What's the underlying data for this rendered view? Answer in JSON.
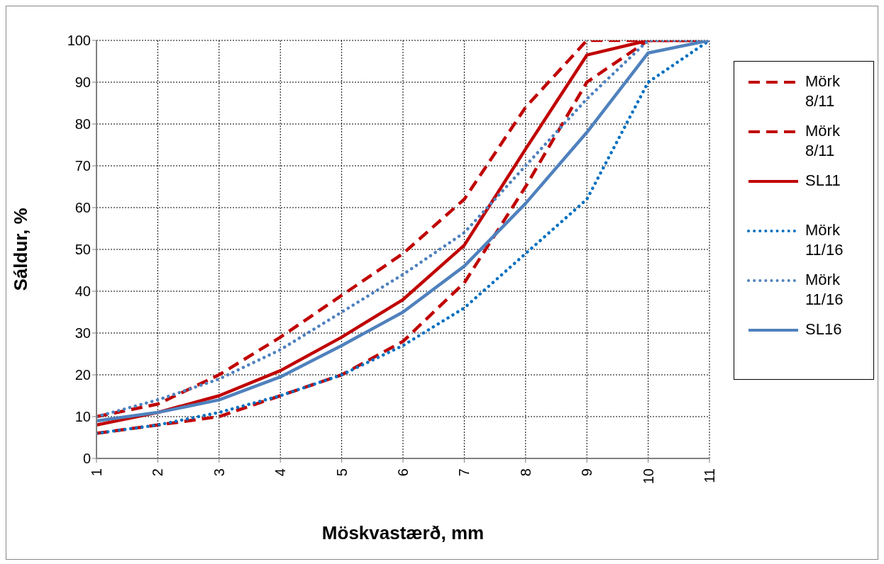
{
  "chart_data": {
    "type": "line",
    "xlabel": "Möskvastærð, mm",
    "ylabel": "Sáldur, %",
    "x": [
      1,
      2,
      3,
      4,
      5,
      6,
      7,
      8,
      9,
      10,
      11
    ],
    "xlim": [
      1,
      11
    ],
    "xticks": [
      1,
      2,
      3,
      4,
      5,
      6,
      7,
      8,
      9,
      10,
      11
    ],
    "ylim": [
      0,
      100
    ],
    "yticks": [
      0,
      10,
      20,
      30,
      40,
      50,
      60,
      70,
      80,
      90,
      100
    ],
    "grid": true,
    "legend": "right",
    "marker": "none",
    "series": [
      {
        "name": "Mörk 8/11",
        "color": "#c00000",
        "line_style": "dashed",
        "values": [
          10,
          13,
          20,
          29,
          39,
          49,
          62,
          84,
          100,
          100,
          100
        ]
      },
      {
        "name": "Mörk 8/11",
        "color": "#c00000",
        "line_style": "dashed",
        "values": [
          6,
          8,
          10,
          15,
          20,
          28,
          42,
          65,
          90,
          100,
          100
        ]
      },
      {
        "name": "SL11",
        "color": "#c00000",
        "line_style": "solid",
        "values": [
          8,
          11,
          15,
          21,
          29,
          38,
          51,
          74,
          96.5,
          100,
          100
        ]
      },
      {
        "name": "Mörk 11/16",
        "color": "#0070c0",
        "line_style": "dotted",
        "values": [
          6,
          8,
          11,
          15,
          20,
          27,
          36,
          49,
          62,
          90,
          100
        ]
      },
      {
        "name": "Mörk 11/16",
        "color": "#4f81bd",
        "line_style": "dotted",
        "values": [
          10,
          14,
          19,
          26,
          35,
          44,
          54,
          70,
          86,
          100,
          100
        ]
      },
      {
        "name": "SL16",
        "color": "#4f81bd",
        "line_style": "solid",
        "values": [
          9,
          11,
          14,
          19.5,
          27,
          35,
          46,
          61,
          78,
          97,
          100
        ]
      }
    ]
  }
}
